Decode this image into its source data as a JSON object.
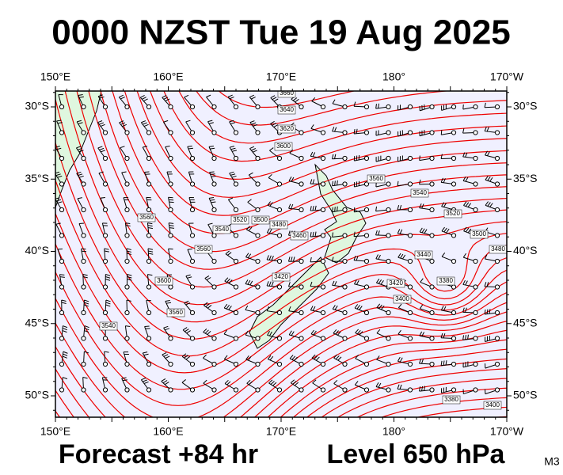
{
  "title": "0000 NZST Tue 19 Aug 2025",
  "map": {
    "lon_labels": [
      "150°E",
      "160°E",
      "170°E",
      "180°",
      "170°W"
    ],
    "lat_labels": [
      "30°S",
      "35°S",
      "40°S",
      "45°S",
      "50°S"
    ],
    "contour_labels": [
      "3660",
      "3640",
      "3620",
      "3600",
      "3560",
      "3540",
      "3520",
      "3500",
      "3480",
      "3480",
      "3460",
      "3440",
      "3420",
      "3400",
      "3380",
      "3380",
      "3400",
      "3560",
      "3600",
      "3560",
      "3540",
      "3520",
      "3500",
      "3540",
      "3560",
      "3420"
    ]
  },
  "footer": {
    "forecast": "Forecast +84 hr",
    "level": "Level 650 hPa",
    "model": "M3"
  }
}
